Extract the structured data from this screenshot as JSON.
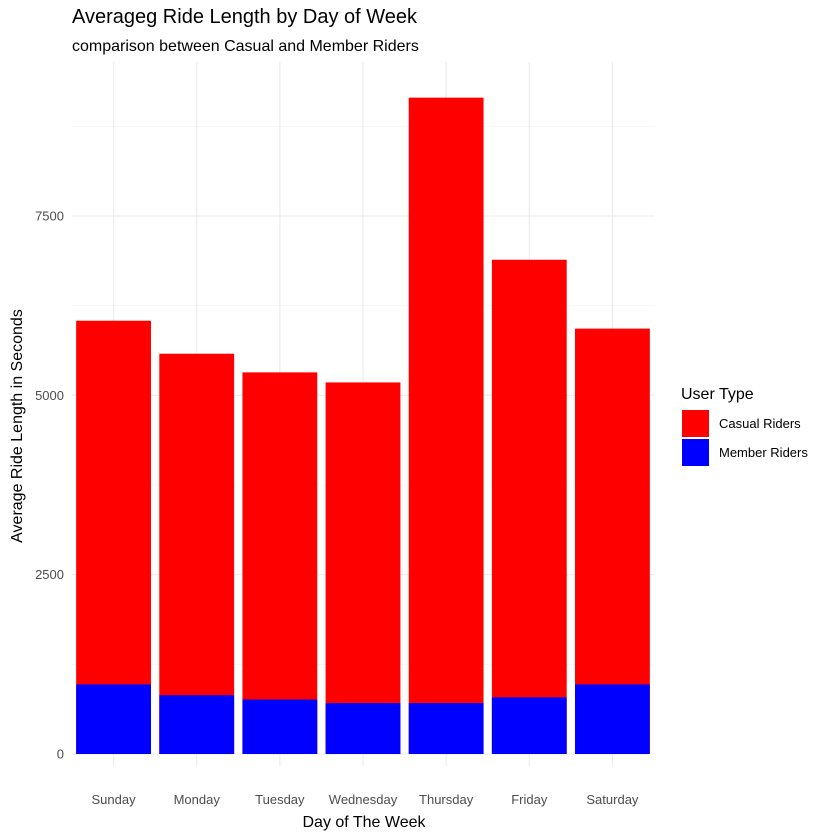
{
  "chart_data": {
    "type": "bar",
    "stacked": true,
    "title": "Averageg Ride Length by Day of Week",
    "subtitle": "comparison between Casual and Member Riders",
    "xlabel": "Day of The Week",
    "ylabel": "Average Ride Length in Seconds",
    "categories": [
      "Sunday",
      "Monday",
      "Tuesday",
      "Wednesday",
      "Thursday",
      "Friday",
      "Saturday"
    ],
    "series": [
      {
        "name": "Casual Riders",
        "color": "#ff0000",
        "values": [
          6040,
          5580,
          5320,
          5180,
          9150,
          6890,
          5930
        ]
      },
      {
        "name": "Member Riders",
        "color": "#0000ff",
        "values": [
          970,
          820,
          760,
          710,
          710,
          790,
          970
        ]
      }
    ],
    "overlap": "member bars drawn in front of casual bars, both starting at zero",
    "ylim": [
      0,
      9600
    ],
    "yticks": [
      0,
      2500,
      5000,
      7500
    ],
    "grid": true,
    "legend": {
      "title": "User Type",
      "position": "right"
    }
  }
}
